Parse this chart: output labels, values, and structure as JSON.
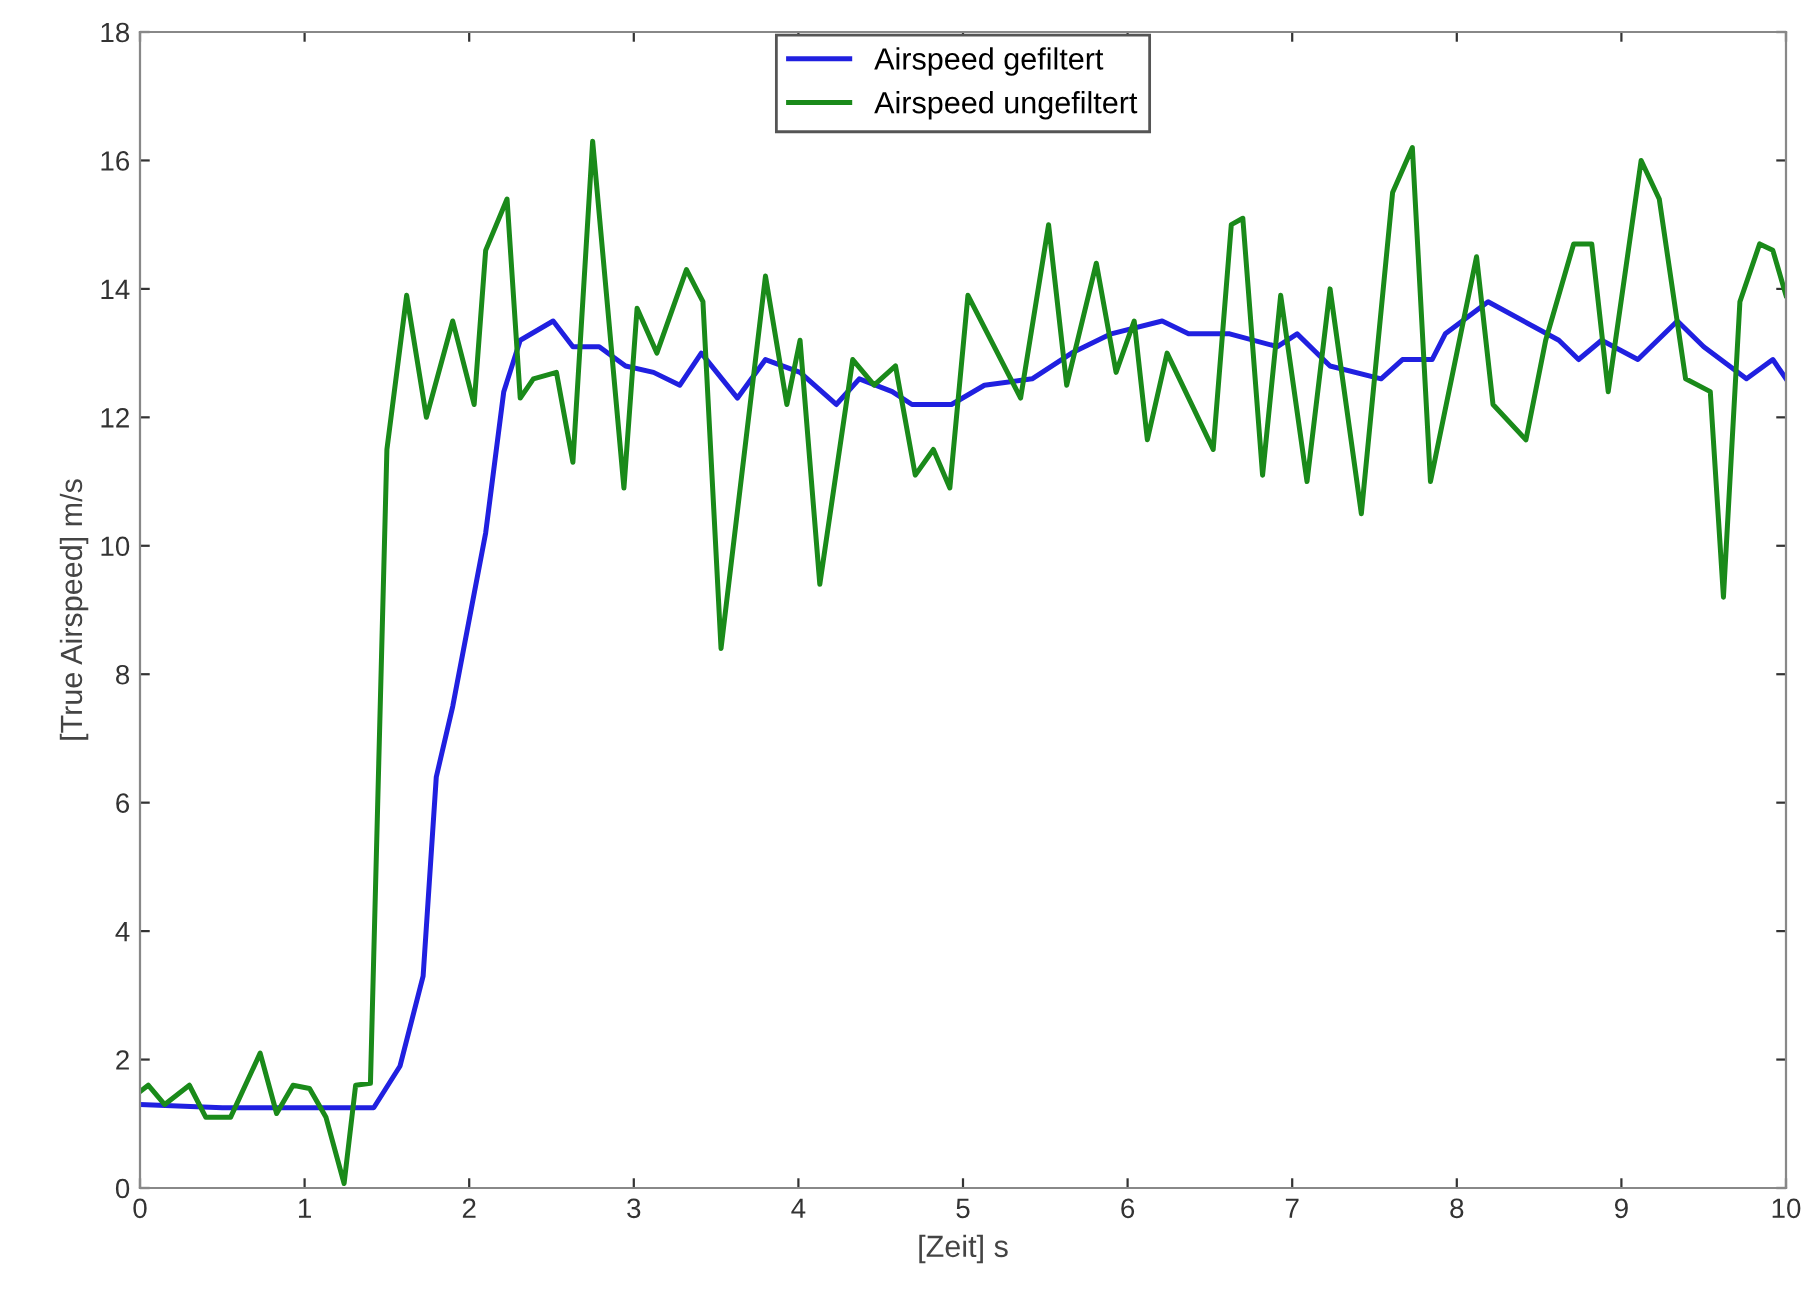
{
  "chart_data": {
    "type": "line",
    "xlabel": "[Zeit] s",
    "ylabel": "[True Airspeed] m/s",
    "xlim": [
      0,
      10
    ],
    "ylim": [
      0,
      18
    ],
    "xticks": [
      0,
      1,
      2,
      3,
      4,
      5,
      6,
      7,
      8,
      9,
      10
    ],
    "yticks": [
      0,
      2,
      4,
      6,
      8,
      10,
      12,
      14,
      16,
      18
    ],
    "grid": false,
    "legend": "top",
    "series": [
      {
        "name": "Airspeed gefiltert",
        "color": "#2020e0",
        "x": [
          0,
          0.5,
          1.0,
          1.42,
          1.58,
          1.72,
          1.8,
          1.9,
          2.1,
          2.21,
          2.31,
          2.51,
          2.63,
          2.79,
          2.95,
          3.12,
          3.28,
          3.41,
          3.63,
          3.8,
          4.01,
          4.23,
          4.37,
          4.57,
          4.69,
          4.93,
          5.13,
          5.42,
          5.66,
          5.9,
          6.21,
          6.37,
          6.62,
          6.91,
          7.03,
          7.23,
          7.54,
          7.67,
          7.85,
          7.93,
          8.19,
          8.62,
          8.74,
          8.88,
          9.1,
          9.34,
          9.5,
          9.76,
          9.92,
          10.0
        ],
        "values": [
          1.3,
          1.25,
          1.25,
          1.25,
          1.9,
          3.3,
          6.4,
          7.5,
          10.2,
          12.4,
          13.2,
          13.5,
          13.1,
          13.1,
          12.8,
          12.7,
          12.5,
          13.0,
          12.3,
          12.9,
          12.7,
          12.2,
          12.6,
          12.4,
          12.2,
          12.2,
          12.5,
          12.6,
          13.0,
          13.3,
          13.5,
          13.3,
          13.3,
          13.1,
          13.3,
          12.8,
          12.6,
          12.9,
          12.9,
          13.3,
          13.8,
          13.2,
          12.9,
          13.2,
          12.9,
          13.5,
          13.1,
          12.6,
          12.9,
          12.6
        ]
      },
      {
        "name": "Airspeed ungefiltert",
        "color": "#1a8a1a",
        "x": [
          0,
          0.05,
          0.15,
          0.3,
          0.4,
          0.55,
          0.73,
          0.83,
          0.93,
          1.03,
          1.13,
          1.24,
          1.31,
          1.4,
          1.5,
          1.62,
          1.74,
          1.9,
          2.03,
          2.1,
          2.23,
          2.31,
          2.39,
          2.53,
          2.63,
          2.75,
          2.94,
          3.02,
          3.14,
          3.32,
          3.42,
          3.53,
          3.8,
          3.93,
          4.01,
          4.13,
          4.33,
          4.46,
          4.59,
          4.71,
          4.82,
          4.92,
          5.03,
          5.35,
          5.52,
          5.63,
          5.81,
          5.93,
          6.04,
          6.12,
          6.24,
          6.52,
          6.63,
          6.7,
          6.82,
          6.93,
          7.09,
          7.23,
          7.42,
          7.61,
          7.73,
          7.84,
          8.12,
          8.22,
          8.42,
          8.54,
          8.71,
          8.82,
          8.92,
          9.12,
          9.23,
          9.39,
          9.54,
          9.62,
          9.72,
          9.84,
          9.92,
          10.0
        ],
        "values": [
          1.5,
          1.6,
          1.3,
          1.6,
          1.1,
          1.1,
          2.1,
          1.16,
          1.6,
          1.55,
          1.1,
          0.07,
          1.6,
          1.63,
          11.5,
          13.9,
          12.0,
          13.5,
          12.2,
          14.6,
          15.4,
          12.3,
          12.6,
          12.7,
          11.3,
          16.3,
          10.9,
          13.7,
          13.0,
          14.3,
          13.8,
          8.4,
          14.2,
          12.2,
          13.2,
          9.4,
          12.9,
          12.5,
          12.8,
          11.1,
          11.5,
          10.9,
          13.9,
          12.3,
          15.0,
          12.5,
          14.4,
          12.7,
          13.5,
          11.65,
          13.0,
          11.5,
          15.0,
          15.1,
          11.1,
          13.9,
          11.0,
          14.0,
          10.5,
          15.5,
          16.2,
          11.0,
          14.5,
          12.2,
          11.65,
          13.2,
          14.7,
          14.7,
          12.4,
          16.0,
          15.4,
          12.6,
          12.4,
          9.2,
          13.8,
          14.7,
          14.6,
          13.9
        ]
      }
    ]
  }
}
